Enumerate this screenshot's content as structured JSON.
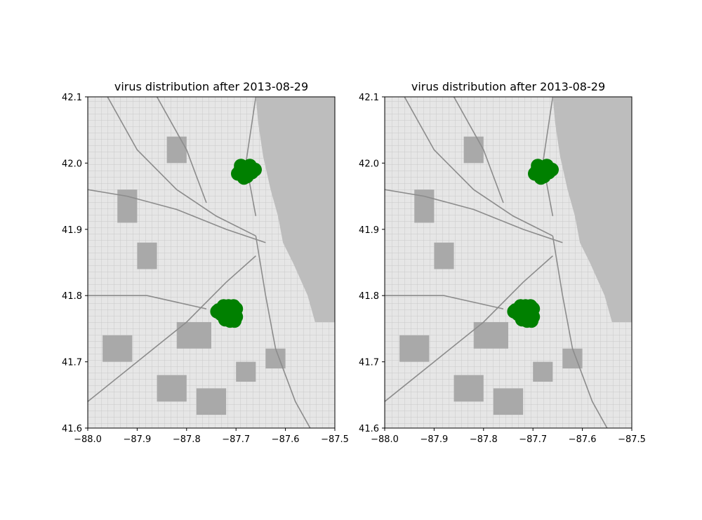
{
  "figure": {
    "background": "#ffffff"
  },
  "chart_data": [
    {
      "type": "scatter",
      "title": "virus distribution after 2013-08-29",
      "xlabel": "",
      "ylabel": "",
      "xlim": [
        -88.0,
        -87.5
      ],
      "ylim": [
        41.6,
        42.1
      ],
      "xticks": [
        "−88.0",
        "−87.9",
        "−87.8",
        "−87.7",
        "−87.6",
        "−87.5"
      ],
      "xtick_values": [
        -88.0,
        -87.9,
        -87.8,
        -87.7,
        -87.6,
        -87.5
      ],
      "yticks": [
        "41.6",
        "41.7",
        "41.8",
        "41.9",
        "42.0",
        "42.1"
      ],
      "ytick_values": [
        41.6,
        41.7,
        41.8,
        41.9,
        42.0,
        42.1
      ],
      "grid": false,
      "legend": "none",
      "background_image": "chicago-street-map",
      "marker_color": "#008000",
      "series": [
        {
          "x": [
            -87.692,
            -87.682,
            -87.675,
            -87.668,
            -87.672,
            -87.69,
            -87.684,
            -87.678,
            -87.696,
            -87.662
          ],
          "y": [
            41.988,
            41.982,
            41.992,
            41.986,
            41.996,
            41.996,
            41.978,
            41.98,
            41.984,
            41.99
          ]
        },
        {
          "x": [
            -87.735,
            -87.725,
            -87.715,
            -87.705,
            -87.7,
            -87.73,
            -87.72,
            -87.71,
            -87.7,
            -87.722,
            -87.712,
            -87.703,
            -87.738,
            -87.718,
            -87.707
          ],
          "y": [
            41.778,
            41.784,
            41.784,
            41.784,
            41.78,
            41.772,
            41.77,
            41.768,
            41.768,
            41.764,
            41.762,
            41.762,
            41.776,
            41.776,
            41.774
          ]
        }
      ]
    },
    {
      "type": "scatter",
      "title": "virus distribution after 2013-08-29",
      "xlabel": "",
      "ylabel": "",
      "xlim": [
        -88.0,
        -87.5
      ],
      "ylim": [
        41.6,
        42.1
      ],
      "xticks": [
        "−88.0",
        "−87.9",
        "−87.8",
        "−87.7",
        "−87.6",
        "−87.5"
      ],
      "xtick_values": [
        -88.0,
        -87.9,
        -87.8,
        -87.7,
        -87.6,
        -87.5
      ],
      "yticks": [
        "41.6",
        "41.7",
        "41.8",
        "41.9",
        "42.0",
        "42.1"
      ],
      "ytick_values": [
        41.6,
        41.7,
        41.8,
        41.9,
        42.0,
        42.1
      ],
      "grid": false,
      "legend": "none",
      "background_image": "chicago-street-map",
      "marker_color": "#008000",
      "series": [
        {
          "x": [
            -87.692,
            -87.682,
            -87.675,
            -87.668,
            -87.672,
            -87.69,
            -87.684,
            -87.678,
            -87.696,
            -87.662
          ],
          "y": [
            41.988,
            41.982,
            41.992,
            41.986,
            41.996,
            41.996,
            41.978,
            41.98,
            41.984,
            41.99
          ]
        },
        {
          "x": [
            -87.735,
            -87.725,
            -87.715,
            -87.705,
            -87.7,
            -87.73,
            -87.72,
            -87.71,
            -87.7,
            -87.722,
            -87.712,
            -87.703,
            -87.738,
            -87.718,
            -87.707
          ],
          "y": [
            41.778,
            41.784,
            41.784,
            41.784,
            41.78,
            41.772,
            41.77,
            41.768,
            41.768,
            41.764,
            41.762,
            41.762,
            41.776,
            41.776,
            41.774
          ]
        }
      ]
    }
  ]
}
